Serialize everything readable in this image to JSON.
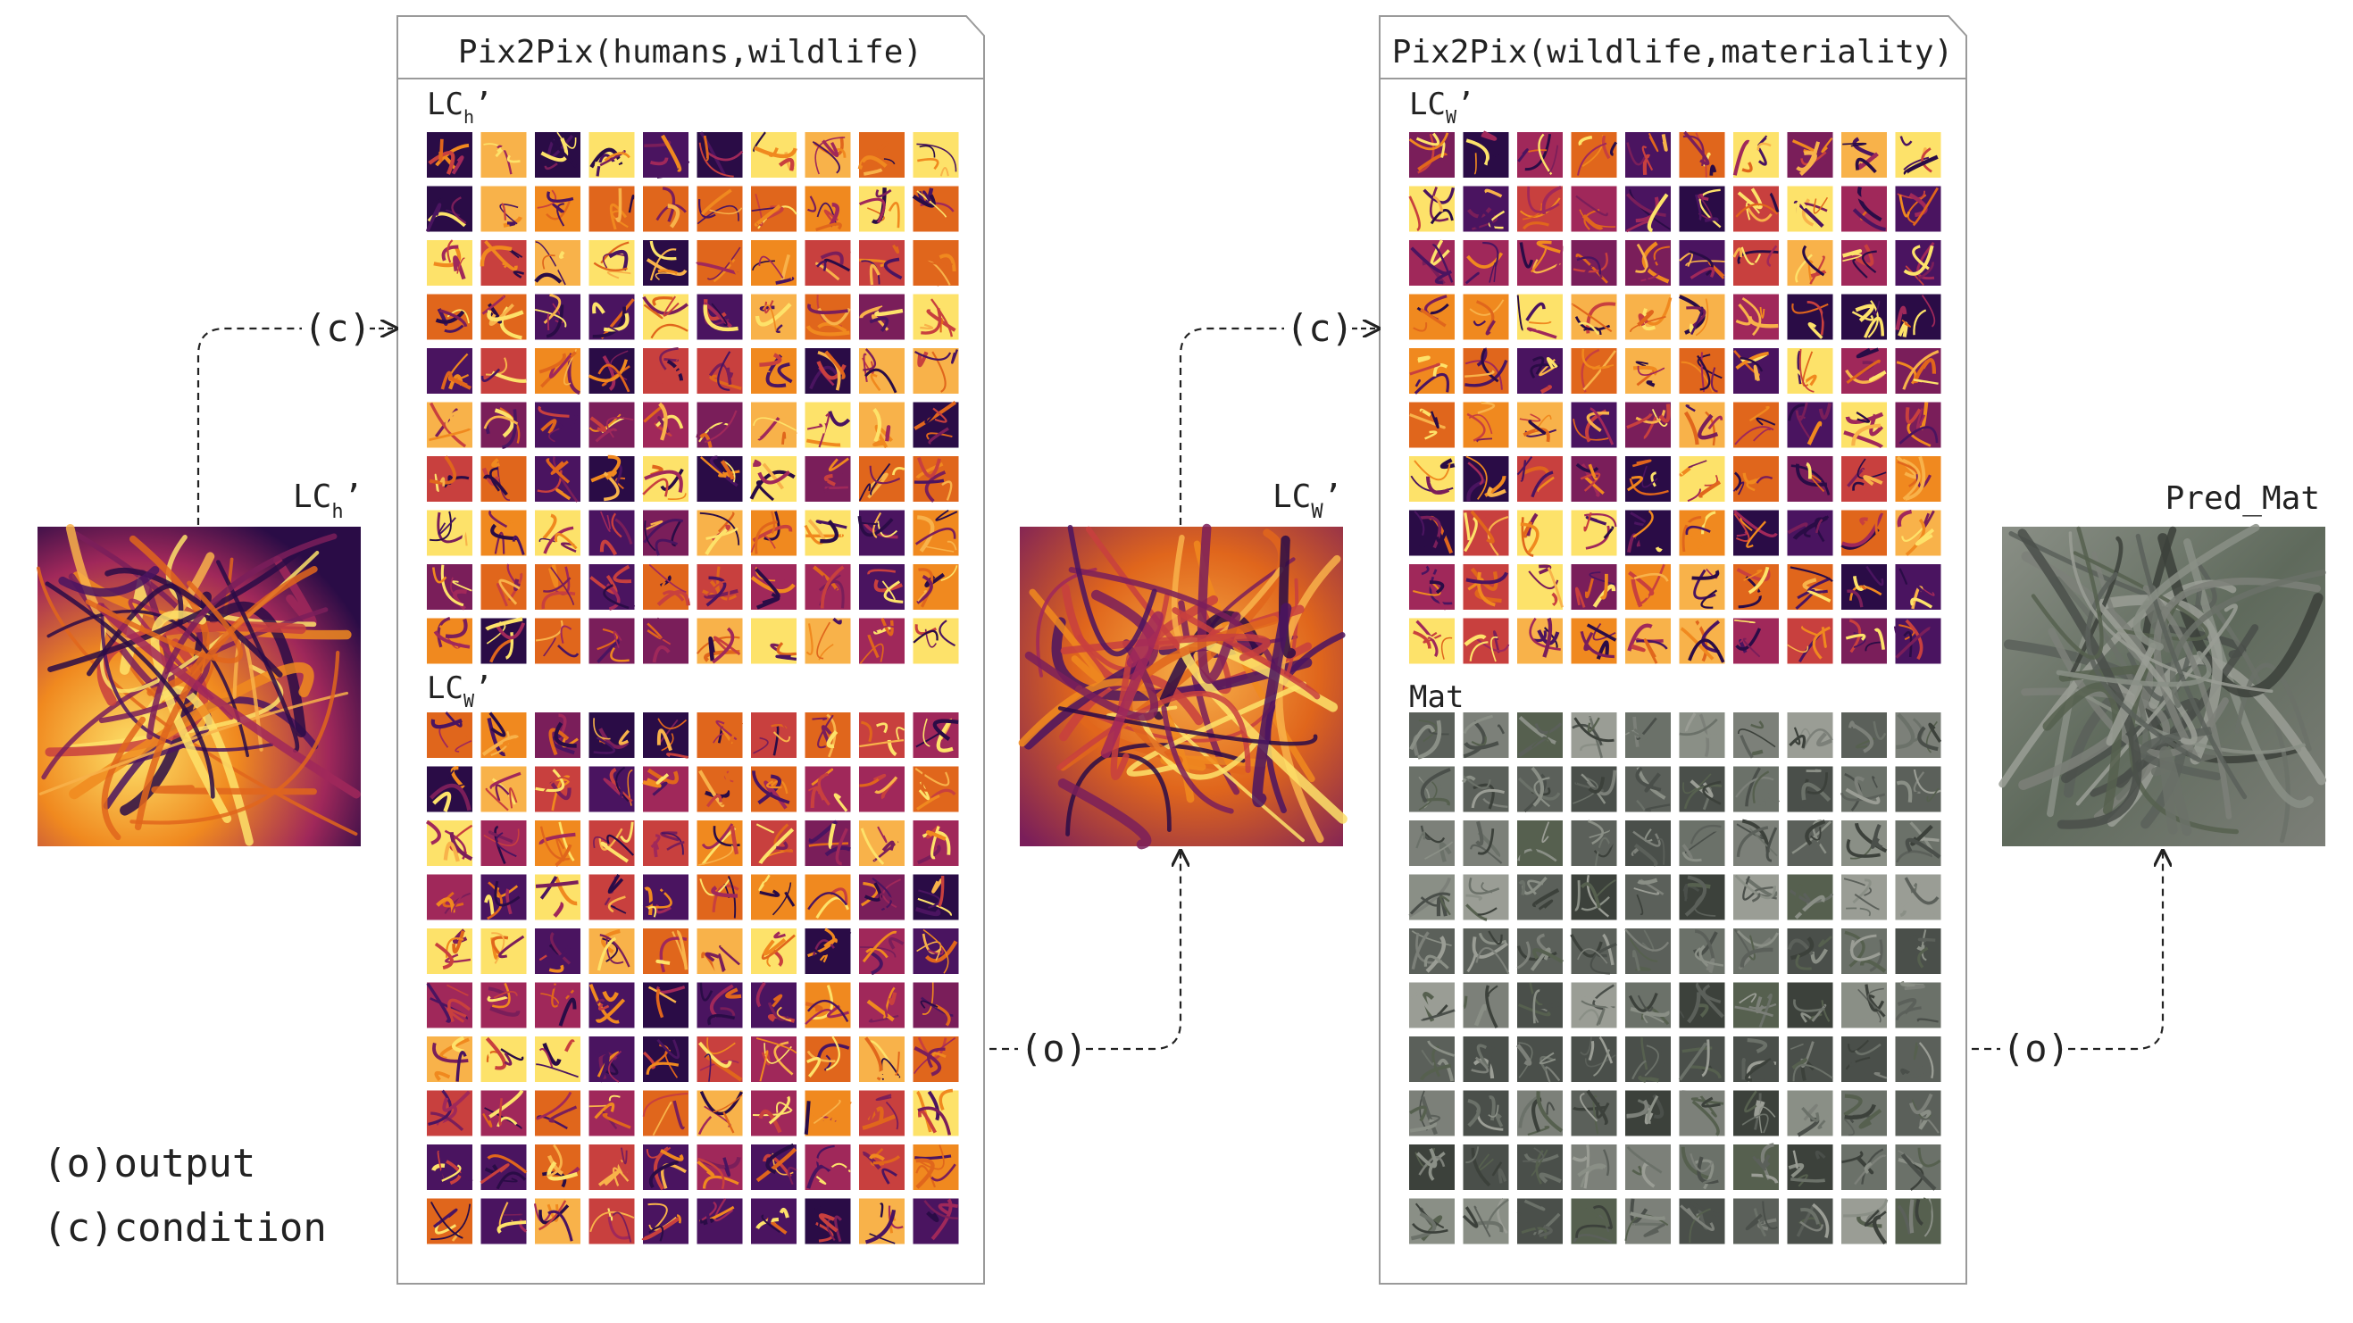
{
  "panel_humans": {
    "title": "Pix2Pix(humans,wildlife)",
    "grid_top_label": "LC",
    "grid_top_sub": "h",
    "grid_bottom_label": "LC",
    "grid_bottom_sub": "W"
  },
  "panel_wildlife": {
    "title": "Pix2Pix(wildlife,materiality)",
    "grid_top_label": "LC",
    "grid_top_sub": "W",
    "grid_bottom_label": "Mat"
  },
  "input_map": {
    "label": "LC",
    "sub": "h"
  },
  "middle_map": {
    "label": "LC",
    "sub": "W"
  },
  "pred_map": {
    "label": "Pred_Mat"
  },
  "arrows": {
    "condition_tag": "(c)",
    "output_tag": "(o)"
  },
  "legend": {
    "output": "(o)output",
    "condition": "(c)condition"
  },
  "colors": {
    "inferno_dark": "#1c0b3a",
    "inferno_purple": "#5a1a6e",
    "inferno_red": "#b52f47",
    "inferno_orange": "#f07b1a",
    "inferno_yellow": "#fde26a",
    "satellite_dark": "#3b3f3c",
    "satellite_gray": "#7b8079",
    "panel_border": "#9a9a9a"
  }
}
